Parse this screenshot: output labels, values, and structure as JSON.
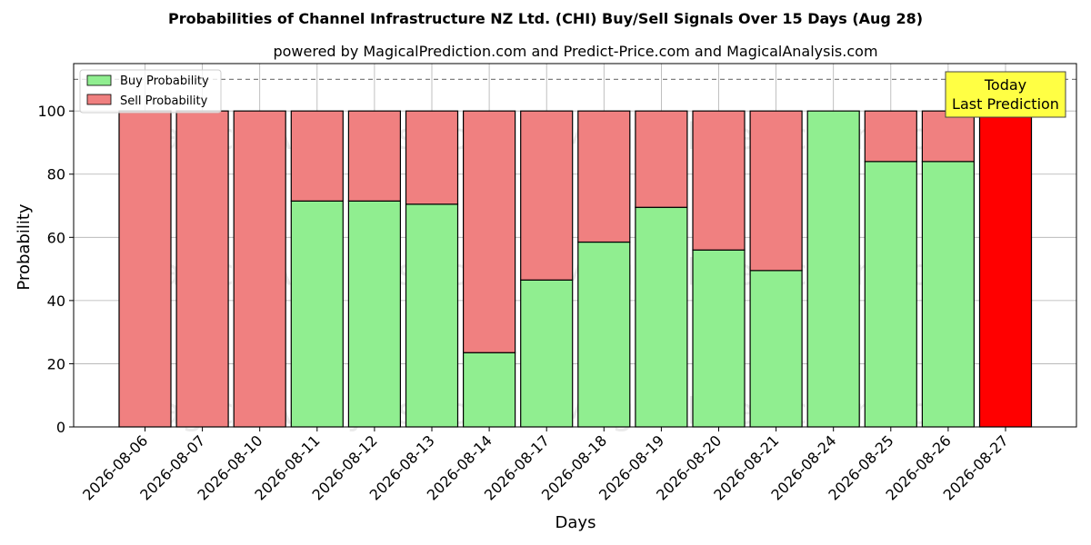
{
  "chart_data": {
    "type": "bar",
    "title": "Probabilities of Channel Infrastructure NZ Ltd. (CHI) Buy/Sell Signals Over 15 Days (Aug 28)",
    "subtitle": "powered by MagicalPrediction.com and Predict-Price.com and MagicalAnalysis.com",
    "xlabel": "Days",
    "ylabel": "Probability",
    "ylim": [
      0,
      115
    ],
    "yticks": [
      0,
      20,
      40,
      60,
      80,
      100
    ],
    "grid": true,
    "legend_position": "top-left",
    "reference_line": 110,
    "categories": [
      "2026-08-06",
      "2026-08-07",
      "2026-08-10",
      "2026-08-11",
      "2026-08-12",
      "2026-08-13",
      "2026-08-14",
      "2026-08-17",
      "2026-08-18",
      "2026-08-19",
      "2026-08-20",
      "2026-08-21",
      "2026-08-24",
      "2026-08-25",
      "2026-08-26",
      "2026-08-27"
    ],
    "series": [
      {
        "name": "Buy Probability",
        "color": "#90ee90",
        "values": [
          0,
          0,
          0,
          71.5,
          71.5,
          70.5,
          23.5,
          46.5,
          58.5,
          69.5,
          56,
          49.5,
          100,
          84,
          84,
          0
        ]
      },
      {
        "name": "Sell Probability",
        "color": "#f08080",
        "values": [
          100,
          100,
          100,
          28.5,
          28.5,
          29.5,
          76.5,
          53.5,
          41.5,
          30.5,
          44,
          50.5,
          0,
          16,
          16,
          100
        ]
      }
    ],
    "highlight": {
      "category": "2026-08-27",
      "color": "#ff0000"
    },
    "annotation": {
      "text_line1": "Today",
      "text_line2": "Last Prediction",
      "background": "#ffff44"
    },
    "watermarks": [
      "MagicalAnalysis.com",
      "MagicalPrediction.com"
    ]
  }
}
